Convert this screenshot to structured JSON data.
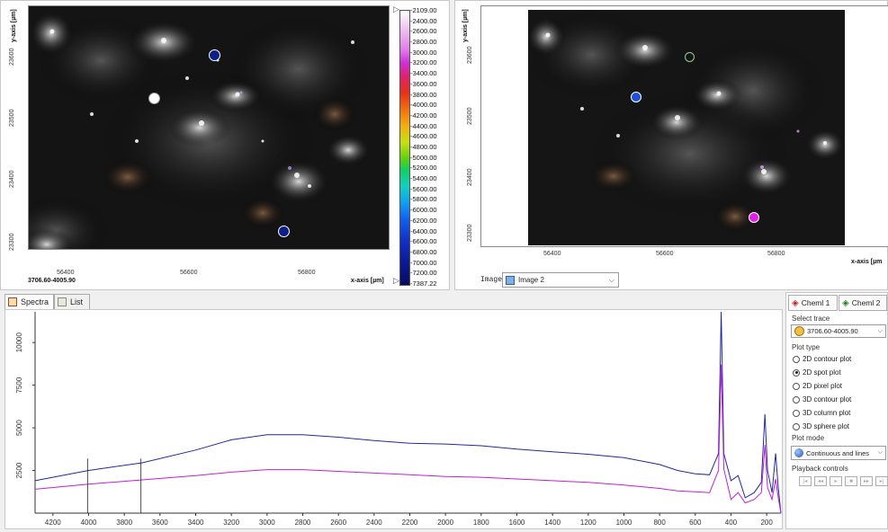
{
  "colors": {
    "blue_spectrum": "#1f2a9c",
    "magenta_spectrum": "#c51fd6",
    "frame_border": "#a0a0a0",
    "spot_navy": "#0b1f8a",
    "spot_blue": "#1e4fd6",
    "spot_white": "#ffffff",
    "spot_magenta": "#e020e8"
  },
  "left_image": {
    "y_axis_label": "y-axis [µm]",
    "x_axis_label": "x-axis [µm]",
    "y_ticks": [
      "23600",
      "23500",
      "23400",
      "23300"
    ],
    "x_ticks": [
      "56400",
      "56600",
      "56800"
    ],
    "trace_label": "3706.60-4005.90"
  },
  "colorbar": {
    "labels": [
      "-2109.00",
      "-2400.00",
      "-2600.00",
      "-2800.00",
      "-3000.00",
      "-3200.00",
      "-3400.00",
      "-3600.00",
      "-3800.00",
      "-4000.00",
      "-4200.00",
      "-4400.00",
      "-4600.00",
      "-4800.00",
      "-5000.00",
      "-5200.00",
      "-5400.00",
      "-5600.00",
      "-5800.00",
      "-6000.00",
      "-6200.00",
      "-6400.00",
      "-6600.00",
      "-6800.00",
      "-7000.00",
      "-7200.00",
      "-7387.22"
    ]
  },
  "right_image": {
    "y_axis_label": "y-axis [µm]",
    "x_axis_label": "x-axis [µm",
    "y_ticks": [
      "23600",
      "23500",
      "23400",
      "23300"
    ],
    "x_ticks": [
      "56400",
      "56600",
      "56800"
    ],
    "image_label": "Image:",
    "image_value": "Image 2"
  },
  "bottom_tabs": {
    "spectra": "Spectra",
    "list": "List"
  },
  "side_panel": {
    "tab1": "Cheml 1",
    "tab2": "Cheml 2",
    "select_trace_label": "Select trace",
    "trace_value": "3706.60-4005.90",
    "plot_type_label": "Plot type",
    "plot_types": [
      {
        "label": "2D contour plot",
        "selected": false
      },
      {
        "label": "2D spot plot",
        "selected": true
      },
      {
        "label": "2D pixel plot",
        "selected": false
      },
      {
        "label": "3D contour plot",
        "selected": false
      },
      {
        "label": "3D column plot",
        "selected": false
      },
      {
        "label": "3D sphere plot",
        "selected": false
      }
    ],
    "plot_mode_label": "Plot mode",
    "plot_mode_value": "Continuous and lines",
    "playback_label": "Playback controls"
  },
  "chart_data": {
    "type": "line",
    "x_ticks": [
      4200,
      4000,
      3800,
      3600,
      3400,
      3200,
      3000,
      2800,
      2600,
      2400,
      2200,
      2000,
      1800,
      1600,
      1400,
      1200,
      1000,
      800,
      600,
      400,
      200
    ],
    "y_ticks": [
      2500,
      5000,
      7500,
      10000
    ],
    "xlim": [
      4300,
      120
    ],
    "ylim": [
      0,
      11800
    ],
    "x_reversed": true,
    "grid": false,
    "markers": [
      4005.9,
      3706.6
    ],
    "series": [
      {
        "color": "#1f2a9c",
        "points": [
          [
            4300,
            1900
          ],
          [
            4000,
            2500
          ],
          [
            3700,
            2950
          ],
          [
            3400,
            3700
          ],
          [
            3200,
            4300
          ],
          [
            3000,
            4600
          ],
          [
            2800,
            4600
          ],
          [
            2600,
            4450
          ],
          [
            2400,
            4250
          ],
          [
            2200,
            4100
          ],
          [
            2000,
            4050
          ],
          [
            1800,
            3950
          ],
          [
            1600,
            3750
          ],
          [
            1400,
            3600
          ],
          [
            1200,
            3450
          ],
          [
            1000,
            3250
          ],
          [
            800,
            2850
          ],
          [
            700,
            2500
          ],
          [
            600,
            2300
          ],
          [
            520,
            2250
          ],
          [
            470,
            3500
          ],
          [
            455,
            11800
          ],
          [
            440,
            3500
          ],
          [
            400,
            1900
          ],
          [
            360,
            2200
          ],
          [
            320,
            900
          ],
          [
            270,
            1200
          ],
          [
            230,
            1800
          ],
          [
            210,
            5800
          ],
          [
            195,
            2500
          ],
          [
            170,
            1200
          ],
          [
            150,
            3500
          ],
          [
            135,
            1500
          ],
          [
            120,
            0
          ]
        ]
      },
      {
        "color": "#c51fd6",
        "points": [
          [
            4300,
            1400
          ],
          [
            4000,
            1700
          ],
          [
            3700,
            1950
          ],
          [
            3400,
            2200
          ],
          [
            3200,
            2400
          ],
          [
            3000,
            2550
          ],
          [
            2800,
            2550
          ],
          [
            2600,
            2450
          ],
          [
            2400,
            2350
          ],
          [
            2200,
            2250
          ],
          [
            2000,
            2150
          ],
          [
            1800,
            2100
          ],
          [
            1600,
            2000
          ],
          [
            1400,
            1900
          ],
          [
            1200,
            1800
          ],
          [
            1000,
            1650
          ],
          [
            800,
            1450
          ],
          [
            700,
            1300
          ],
          [
            600,
            1250
          ],
          [
            520,
            1200
          ],
          [
            470,
            2500
          ],
          [
            455,
            8700
          ],
          [
            440,
            2600
          ],
          [
            400,
            800
          ],
          [
            360,
            1200
          ],
          [
            320,
            600
          ],
          [
            270,
            800
          ],
          [
            230,
            1200
          ],
          [
            210,
            4000
          ],
          [
            195,
            1500
          ],
          [
            170,
            800
          ],
          [
            150,
            2000
          ],
          [
            135,
            900
          ],
          [
            120,
            0
          ]
        ]
      }
    ]
  }
}
